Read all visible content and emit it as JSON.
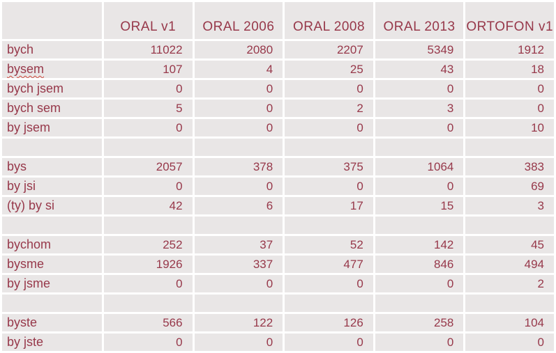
{
  "table": {
    "columns": [
      "",
      "ORAL v1",
      "ORAL 2006",
      "ORAL 2008",
      "ORAL 2013",
      "ORTOFON v1"
    ],
    "rows": [
      {
        "label": "bych",
        "misspelled": false,
        "separator": false,
        "values": [
          "11022",
          "2080",
          "2207",
          "5349",
          "1912"
        ]
      },
      {
        "label": "bysem",
        "misspelled": true,
        "separator": false,
        "values": [
          "107",
          "4",
          "25",
          "43",
          "18"
        ]
      },
      {
        "label": "bych jsem",
        "misspelled": false,
        "separator": false,
        "values": [
          "0",
          "0",
          "0",
          "0",
          "0"
        ]
      },
      {
        "label": "bych sem",
        "misspelled": false,
        "separator": false,
        "values": [
          "5",
          "0",
          "2",
          "3",
          "0"
        ]
      },
      {
        "label": "by jsem",
        "misspelled": false,
        "separator": false,
        "values": [
          "0",
          "0",
          "0",
          "0",
          "10"
        ]
      },
      {
        "label": "",
        "misspelled": false,
        "separator": true,
        "values": [
          "",
          "",
          "",
          "",
          ""
        ]
      },
      {
        "label": "bys",
        "misspelled": false,
        "separator": false,
        "values": [
          "2057",
          "378",
          "375",
          "1064",
          "383"
        ]
      },
      {
        "label": "by jsi",
        "misspelled": false,
        "separator": false,
        "values": [
          "0",
          "0",
          "0",
          "0",
          "69"
        ]
      },
      {
        "label": "(ty) by si",
        "misspelled": false,
        "separator": false,
        "values": [
          "42",
          "6",
          "17",
          "15",
          "3"
        ]
      },
      {
        "label": "",
        "misspelled": false,
        "separator": true,
        "values": [
          "",
          "",
          "",
          "",
          ""
        ]
      },
      {
        "label": "bychom",
        "misspelled": false,
        "separator": false,
        "values": [
          "252",
          "37",
          "52",
          "142",
          "45"
        ]
      },
      {
        "label": "bysme",
        "misspelled": false,
        "separator": false,
        "values": [
          "1926",
          "337",
          "477",
          "846",
          "494"
        ]
      },
      {
        "label": "by jsme",
        "misspelled": false,
        "separator": false,
        "values": [
          "0",
          "0",
          "0",
          "0",
          "2"
        ]
      },
      {
        "label": "",
        "misspelled": false,
        "separator": true,
        "values": [
          "",
          "",
          "",
          "",
          ""
        ]
      },
      {
        "label": "byste",
        "misspelled": false,
        "separator": false,
        "values": [
          "566",
          "122",
          "126",
          "258",
          "104"
        ]
      },
      {
        "label": "by jste",
        "misspelled": false,
        "separator": false,
        "values": [
          "0",
          "0",
          "0",
          "0",
          "0"
        ]
      }
    ],
    "colors": {
      "text": "#97384a",
      "cell_background": "#e9e6e6",
      "gutter": "#ffffff",
      "spellcheck_underline": "#cc4437"
    }
  }
}
